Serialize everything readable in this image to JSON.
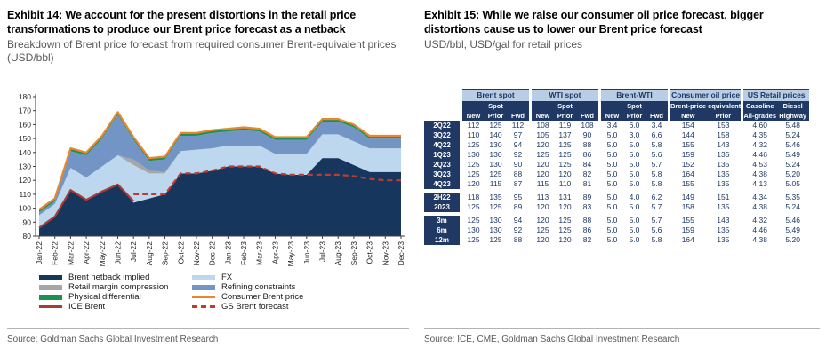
{
  "exhibit14": {
    "title": "Exhibit 14: We account for the present distortions in the retail price transformations to produce our Brent price forecast as a netback",
    "subtitle": "Breakdown of Brent price forecast from required consumer Brent-equivalent prices (USD/bbl)",
    "source": "Source: Goldman Sachs Global Investment Research",
    "legend": {
      "col1": [
        {
          "label": "Brent netback implied",
          "swatch": "area",
          "color": "#17365d"
        },
        {
          "label": "Retail margin compression",
          "swatch": "area",
          "color": "#a6a6a6"
        },
        {
          "label": "Physical differential",
          "swatch": "area",
          "color": "#1d9150"
        },
        {
          "label": "ICE Brent",
          "swatch": "line",
          "color": "#a83b34"
        }
      ],
      "col2": [
        {
          "label": "FX",
          "swatch": "area",
          "color": "#bdd7ee"
        },
        {
          "label": "Refining constraints",
          "swatch": "area",
          "color": "#7295c5"
        },
        {
          "label": "Consumer Brent price",
          "swatch": "line",
          "color": "#e8872e"
        },
        {
          "label": "GS Brent forecast",
          "swatch": "dashline",
          "color": "#bf3a2f"
        }
      ]
    }
  },
  "exhibit15": {
    "title": "Exhibit 15: While we raise our consumer oil price forecast, bigger distortions cause us to lower our Brent price forecast",
    "subtitle": "USD/bbl, USD/gal for retail prices",
    "source": "Source: ICE, CME, Goldman Sachs Global Investment Research"
  },
  "chart_data": [
    {
      "type": "area",
      "title": "Breakdown of Brent price forecast from required consumer Brent-equivalent prices (USD/bbl)",
      "x": [
        "Jan-22",
        "Feb-22",
        "Mar-22",
        "Apr-22",
        "May-22",
        "Jun-22",
        "Jul-22",
        "Aug-22",
        "Sep-22",
        "Oct-22",
        "Nov-22",
        "Dec-22",
        "Jan-23",
        "Feb-23",
        "Mar-23",
        "Apr-23",
        "May-23",
        "Jun-23",
        "Jul-23",
        "Aug-23",
        "Sep-23",
        "Oct-23",
        "Nov-23",
        "Dec-23"
      ],
      "ylim": [
        80,
        180
      ],
      "ytick_step": 10,
      "grid": false,
      "legend_position": "bottom",
      "bands_cumulative_tops": [
        {
          "name": "Brent netback implied",
          "color": "#17365d",
          "top": [
            86,
            94,
            113,
            106,
            112,
            117,
            104,
            107,
            110,
            125,
            125,
            127,
            130,
            130,
            130,
            125,
            124,
            124,
            136,
            136,
            131,
            126,
            126,
            126
          ]
        },
        {
          "name": "FX",
          "color": "#bdd7ee",
          "top": [
            95,
            103,
            129,
            122,
            130,
            138,
            131,
            125,
            125,
            141,
            142,
            143,
            145,
            145,
            145,
            139,
            139,
            139,
            153,
            153,
            148,
            143,
            143,
            143
          ]
        },
        {
          "name": "Retail margin compression",
          "color": "#a6a6a6",
          "top": [
            95,
            103,
            129,
            122,
            130,
            138,
            135,
            127,
            126,
            141,
            142,
            143,
            145,
            145,
            145,
            139,
            139,
            139,
            153,
            153,
            148,
            143,
            143,
            143
          ]
        },
        {
          "name": "Refining constraints",
          "color": "#7295c5",
          "top": [
            97,
            105,
            141,
            138,
            150,
            167,
            149,
            134,
            135,
            152,
            152,
            154,
            155,
            156,
            155,
            149,
            149,
            149,
            162,
            162,
            158,
            150,
            150,
            150
          ]
        },
        {
          "name": "Physical differential",
          "color": "#1d9150",
          "top": [
            99,
            107,
            143,
            140,
            152,
            169,
            151,
            136,
            137,
            154,
            154,
            156,
            157,
            158,
            157,
            151,
            151,
            151,
            164,
            164,
            160,
            152,
            152,
            152
          ]
        }
      ],
      "lines": [
        {
          "name": "Consumer Brent price",
          "color": "#e8872e",
          "dash": false,
          "values": [
            99,
            107,
            143,
            140,
            152,
            169,
            151,
            136,
            137,
            154,
            154,
            156,
            157,
            158,
            157,
            151,
            151,
            151,
            164,
            164,
            160,
            152,
            152,
            152
          ]
        },
        {
          "name": "ICE Brent",
          "color": "#a83b34",
          "dash": false,
          "values": [
            86,
            94,
            113,
            106,
            112,
            117,
            105,
            null,
            null,
            null,
            null,
            null,
            null,
            null,
            null,
            null,
            null,
            null,
            null,
            null,
            null,
            null,
            null,
            null
          ]
        },
        {
          "name": "GS Brent forecast",
          "color": "#bf3a2f",
          "dash": true,
          "values": [
            null,
            null,
            null,
            null,
            null,
            null,
            110,
            110,
            110,
            125,
            125,
            127,
            130,
            130,
            130,
            125,
            124,
            124,
            124,
            124,
            123,
            121,
            120,
            120
          ]
        }
      ]
    },
    {
      "type": "table",
      "groups": [
        {
          "title": "Brent spot",
          "cols": 3,
          "row2": [
            "",
            "Spot",
            ""
          ],
          "row3": [
            "New",
            "Prior",
            "Fwd"
          ]
        },
        {
          "title": "WTI spot",
          "cols": 3,
          "row2": [
            "",
            "Spot",
            ""
          ],
          "row3": [
            "New",
            "Prior",
            "Fwd"
          ]
        },
        {
          "title": "Brent-WTI",
          "cols": 3,
          "row2": [
            "",
            "Spot",
            ""
          ],
          "row3": [
            "New",
            "Prior",
            "Fwd"
          ]
        },
        {
          "title": "Consumer oil price",
          "cols": 2,
          "row2_span": "Brent-price equivalent",
          "row3": [
            "New",
            "Prior"
          ]
        },
        {
          "title": "US Retail prices",
          "cols": 2,
          "row2": [
            "Gasoline",
            "Diesel"
          ],
          "row3": [
            "All-grades",
            "Highway"
          ]
        }
      ],
      "blocks": [
        {
          "rows": [
            {
              "label": "2Q22",
              "values": [
                "112",
                "125",
                "112",
                "108",
                "119",
                "108",
                "3.4",
                "6.0",
                "3.4",
                "154",
                "153",
                "4.60",
                "5.48"
              ]
            },
            {
              "label": "3Q22",
              "values": [
                "110",
                "140",
                "97",
                "105",
                "137",
                "90",
                "5.0",
                "3.0",
                "6.6",
                "144",
                "158",
                "4.35",
                "5.24"
              ]
            },
            {
              "label": "4Q22",
              "values": [
                "125",
                "130",
                "94",
                "120",
                "125",
                "88",
                "5.0",
                "5.0",
                "5.8",
                "155",
                "143",
                "4.32",
                "5.46"
              ]
            },
            {
              "label": "1Q23",
              "values": [
                "130",
                "130",
                "92",
                "125",
                "125",
                "86",
                "5.0",
                "5.0",
                "5.6",
                "159",
                "135",
                "4.46",
                "5.49"
              ]
            },
            {
              "label": "2Q23",
              "values": [
                "125",
                "130",
                "90",
                "120",
                "125",
                "84",
                "5.0",
                "5.0",
                "5.7",
                "152",
                "135",
                "4.53",
                "5.24"
              ]
            },
            {
              "label": "3Q23",
              "values": [
                "125",
                "125",
                "88",
                "120",
                "120",
                "82",
                "5.0",
                "5.0",
                "5.8",
                "164",
                "135",
                "4.38",
                "5.20"
              ]
            },
            {
              "label": "4Q23",
              "values": [
                "120",
                "115",
                "87",
                "115",
                "110",
                "81",
                "5.0",
                "5.0",
                "5.8",
                "155",
                "135",
                "4.13",
                "5.05"
              ]
            }
          ]
        },
        {
          "rows": [
            {
              "label": "2H22",
              "values": [
                "118",
                "135",
                "95",
                "113",
                "131",
                "89",
                "5.0",
                "4.0",
                "6.2",
                "149",
                "151",
                "4.34",
                "5.35"
              ]
            },
            {
              "label": "2023",
              "values": [
                "125",
                "125",
                "89",
                "120",
                "120",
                "83",
                "5.0",
                "5.0",
                "5.7",
                "158",
                "135",
                "4.38",
                "5.24"
              ]
            }
          ]
        },
        {
          "rows": [
            {
              "label": "3m",
              "values": [
                "125",
                "130",
                "94",
                "120",
                "125",
                "88",
                "5.0",
                "5.0",
                "5.7",
                "155",
                "143",
                "4.32",
                "5.46"
              ]
            },
            {
              "label": "6m",
              "values": [
                "130",
                "130",
                "92",
                "125",
                "125",
                "86",
                "5.0",
                "5.0",
                "5.6",
                "159",
                "135",
                "4.46",
                "5.49"
              ]
            },
            {
              "label": "12m",
              "values": [
                "125",
                "125",
                "88",
                "120",
                "120",
                "82",
                "5.0",
                "5.0",
                "5.8",
                "164",
                "135",
                "4.38",
                "5.20"
              ]
            }
          ]
        }
      ]
    }
  ]
}
